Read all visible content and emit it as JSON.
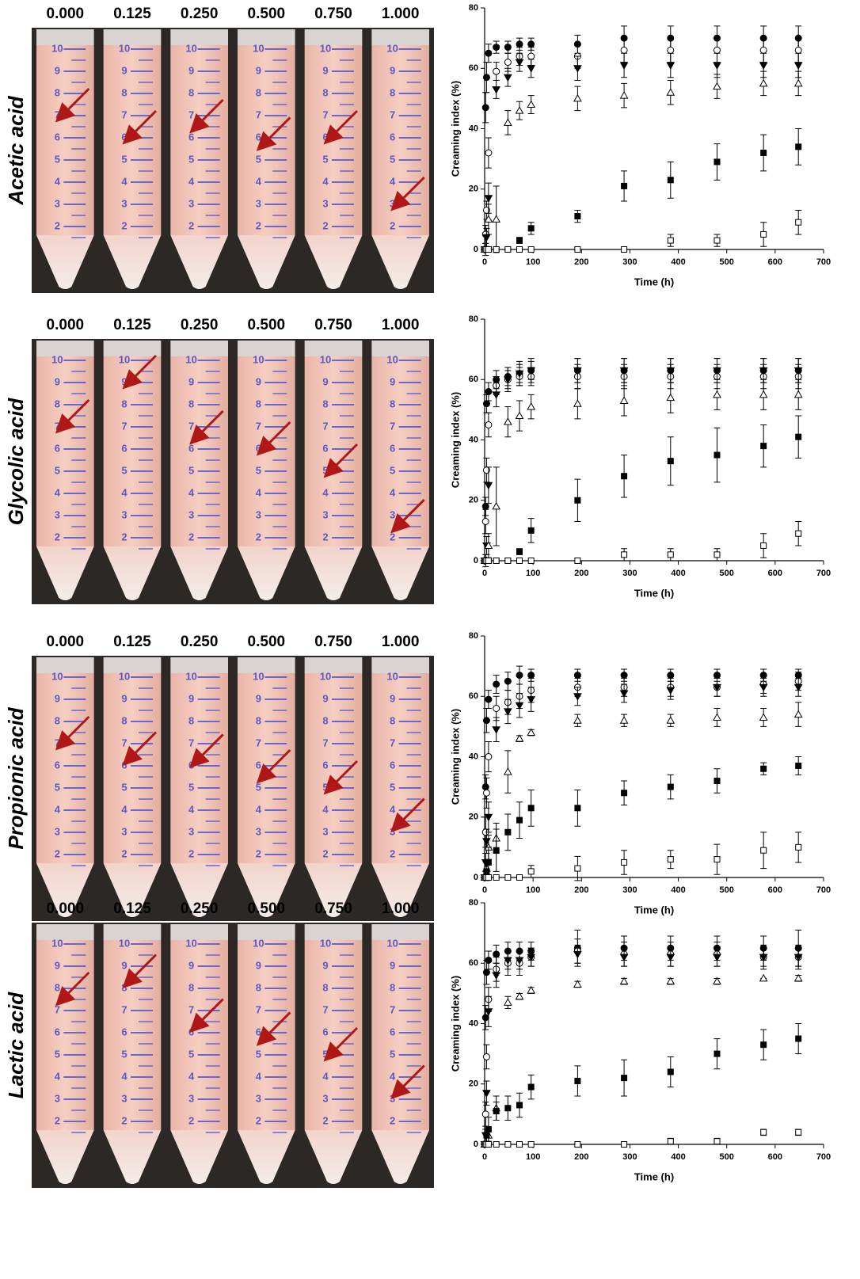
{
  "rows": [
    {
      "label": "Acetic acid",
      "concentrations": [
        "0.000",
        "0.125",
        "0.250",
        "0.500",
        "0.750",
        "1.000"
      ]
    },
    {
      "label": "Glycolic acid",
      "concentrations": [
        "0.000",
        "0.125",
        "0.250",
        "0.500",
        "0.750",
        "1.000"
      ]
    },
    {
      "label": "Propionic acid",
      "concentrations": [
        "0.000",
        "0.125",
        "0.250",
        "0.500",
        "0.750",
        "1.000"
      ]
    },
    {
      "label": "Lactic acid",
      "concentrations": [
        "0.000",
        "0.125",
        "0.250",
        "0.500",
        "0.750",
        "1.000"
      ]
    }
  ],
  "tube_scale": [
    10,
    9,
    8,
    7,
    6,
    5,
    4,
    3,
    2
  ],
  "chart_data": [
    {
      "type": "scatter",
      "x_label": "Time (h)",
      "y_label": "Creaming index (%)",
      "x": [
        0,
        2,
        4,
        8,
        24,
        48,
        72,
        96,
        192,
        288,
        384,
        480,
        576,
        648
      ],
      "xlim": [
        0,
        700
      ],
      "xticks": [
        0,
        100,
        200,
        300,
        400,
        500,
        600,
        700
      ],
      "ylim": [
        0,
        80
      ],
      "yticks": [
        0,
        20,
        40,
        60,
        80
      ],
      "series": [
        {
          "marker": "circle",
          "color": "#000000",
          "values": [
            0,
            47,
            57,
            65,
            67,
            67,
            68,
            68,
            68,
            70,
            70,
            70,
            70,
            70
          ],
          "errors": [
            0,
            5,
            5,
            3,
            2,
            2,
            2,
            2,
            3,
            4,
            4,
            4,
            4,
            4
          ]
        },
        {
          "marker": "circle-open",
          "color": "#000000",
          "values": [
            0,
            5,
            13,
            32,
            59,
            62,
            64,
            64,
            64,
            66,
            66,
            66,
            66,
            66
          ],
          "errors": [
            0,
            3,
            3,
            5,
            3,
            3,
            3,
            3,
            4,
            4,
            4,
            4,
            4,
            4
          ]
        },
        {
          "marker": "triangle-down",
          "color": "#000000",
          "values": [
            0,
            0,
            4,
            17,
            53,
            57,
            62,
            60,
            60,
            61,
            61,
            61,
            61,
            61
          ],
          "errors": [
            0,
            2,
            3,
            5,
            3,
            3,
            3,
            3,
            4,
            4,
            4,
            4,
            4,
            4
          ]
        },
        {
          "marker": "triangle-up-open",
          "color": "#000000",
          "values": [
            0,
            0,
            0,
            10,
            10,
            42,
            46,
            48,
            50,
            51,
            52,
            54,
            55,
            55
          ],
          "errors": [
            0,
            0,
            0,
            5,
            11,
            4,
            3,
            3,
            4,
            4,
            4,
            4,
            4,
            4
          ]
        },
        {
          "marker": "square",
          "color": "#000000",
          "values": [
            0,
            0,
            0,
            0,
            0,
            0,
            3,
            7,
            11,
            21,
            23,
            29,
            32,
            34
          ],
          "errors": [
            0,
            0,
            0,
            0,
            0,
            0,
            1,
            2,
            2,
            5,
            6,
            6,
            6,
            6
          ]
        },
        {
          "marker": "square-open",
          "color": "#000000",
          "values": [
            0,
            0,
            0,
            0,
            0,
            0,
            0,
            0,
            0,
            0,
            3,
            3,
            5,
            9
          ],
          "errors": [
            0,
            0,
            0,
            0,
            0,
            0,
            0,
            0,
            0,
            0,
            2,
            2,
            4,
            4
          ]
        }
      ]
    },
    {
      "type": "scatter",
      "x_label": "Time (h)",
      "y_label": "Creaming index (%)",
      "x": [
        0,
        2,
        4,
        8,
        24,
        48,
        72,
        96,
        192,
        288,
        384,
        480,
        576,
        648
      ],
      "xlim": [
        0,
        700
      ],
      "xticks": [
        0,
        100,
        200,
        300,
        400,
        500,
        600,
        700
      ],
      "ylim": [
        0,
        80
      ],
      "yticks": [
        0,
        20,
        40,
        60,
        80
      ],
      "series": [
        {
          "marker": "circle",
          "color": "#000000",
          "values": [
            0,
            18,
            52,
            56,
            60,
            61,
            62,
            63,
            63,
            63,
            63,
            63,
            63,
            63
          ],
          "errors": [
            0,
            3,
            3,
            3,
            3,
            3,
            3,
            3,
            4,
            4,
            4,
            4,
            4,
            4
          ]
        },
        {
          "marker": "circle-open",
          "color": "#000000",
          "values": [
            0,
            13,
            30,
            45,
            58,
            60,
            61,
            61,
            61,
            61,
            61,
            61,
            61,
            61
          ],
          "errors": [
            0,
            4,
            4,
            4,
            3,
            3,
            3,
            3,
            4,
            4,
            4,
            4,
            4,
            4
          ]
        },
        {
          "marker": "triangle-down",
          "color": "#000000",
          "values": [
            0,
            0,
            5,
            25,
            55,
            60,
            62,
            63,
            63,
            63,
            63,
            63,
            63,
            63
          ],
          "errors": [
            0,
            2,
            3,
            6,
            4,
            4,
            4,
            4,
            4,
            4,
            4,
            4,
            4,
            4
          ]
        },
        {
          "marker": "triangle-up-open",
          "color": "#000000",
          "values": [
            0,
            0,
            0,
            5,
            18,
            46,
            48,
            51,
            52,
            53,
            54,
            55,
            55,
            55
          ],
          "errors": [
            0,
            0,
            0,
            4,
            13,
            5,
            5,
            4,
            5,
            5,
            5,
            5,
            5,
            5
          ]
        },
        {
          "marker": "square",
          "color": "#000000",
          "values": [
            0,
            0,
            0,
            0,
            0,
            0,
            3,
            10,
            20,
            28,
            33,
            35,
            38,
            41
          ],
          "errors": [
            0,
            0,
            0,
            0,
            0,
            0,
            1,
            4,
            7,
            7,
            8,
            9,
            7,
            7
          ]
        },
        {
          "marker": "square-open",
          "color": "#000000",
          "values": [
            0,
            0,
            0,
            0,
            0,
            0,
            0,
            0,
            0,
            2,
            2,
            2,
            5,
            9
          ],
          "errors": [
            0,
            0,
            0,
            0,
            0,
            0,
            0,
            0,
            0,
            2,
            2,
            2,
            4,
            4
          ]
        }
      ]
    },
    {
      "type": "scatter",
      "x_label": "Time (h)",
      "y_label": "Creaming index (%)",
      "x": [
        0,
        2,
        4,
        8,
        24,
        48,
        72,
        96,
        192,
        288,
        384,
        480,
        576,
        648
      ],
      "xlim": [
        0,
        700
      ],
      "xticks": [
        0,
        100,
        200,
        300,
        400,
        500,
        600,
        700
      ],
      "ylim": [
        0,
        80
      ],
      "yticks": [
        0,
        20,
        40,
        60,
        80
      ],
      "series": [
        {
          "marker": "circle",
          "color": "#000000",
          "values": [
            0,
            30,
            52,
            59,
            64,
            65,
            67,
            67,
            67,
            67,
            67,
            67,
            67,
            67
          ],
          "errors": [
            0,
            4,
            4,
            3,
            3,
            3,
            3,
            2,
            2,
            2,
            2,
            2,
            2,
            2
          ]
        },
        {
          "marker": "circle-open",
          "color": "#000000",
          "values": [
            0,
            15,
            28,
            40,
            56,
            58,
            60,
            62,
            63,
            63,
            63,
            63,
            64,
            65
          ],
          "errors": [
            0,
            5,
            5,
            5,
            4,
            4,
            4,
            4,
            3,
            3,
            3,
            3,
            3,
            3
          ]
        },
        {
          "marker": "triangle-down",
          "color": "#000000",
          "values": [
            0,
            5,
            12,
            20,
            49,
            55,
            57,
            59,
            60,
            61,
            62,
            63,
            63,
            63
          ],
          "errors": [
            0,
            3,
            4,
            5,
            4,
            4,
            4,
            4,
            3,
            3,
            3,
            3,
            3,
            3
          ]
        },
        {
          "marker": "triangle-up-open",
          "color": "#000000",
          "values": [
            0,
            0,
            3,
            10,
            13,
            35,
            46,
            48,
            52,
            52,
            52,
            53,
            53,
            54
          ],
          "errors": [
            0,
            0,
            2,
            4,
            5,
            7,
            1,
            1,
            2,
            2,
            2,
            3,
            3,
            4
          ]
        },
        {
          "marker": "square",
          "color": "#000000",
          "values": [
            0,
            0,
            2,
            5,
            9,
            15,
            19,
            23,
            23,
            28,
            30,
            32,
            36,
            37
          ],
          "errors": [
            0,
            0,
            3,
            5,
            7,
            6,
            6,
            6,
            6,
            4,
            4,
            4,
            2,
            3
          ]
        },
        {
          "marker": "square-open",
          "color": "#000000",
          "values": [
            0,
            0,
            0,
            0,
            0,
            0,
            0,
            2,
            3,
            5,
            6,
            6,
            9,
            10
          ],
          "errors": [
            0,
            0,
            0,
            0,
            0,
            0,
            0,
            2,
            4,
            4,
            3,
            5,
            6,
            5
          ]
        }
      ]
    },
    {
      "type": "scatter",
      "x_label": "Time (h)",
      "y_label": "Creaming index (%)",
      "x": [
        0,
        2,
        4,
        8,
        24,
        48,
        72,
        96,
        192,
        288,
        384,
        480,
        576,
        648
      ],
      "xlim": [
        0,
        700
      ],
      "xticks": [
        0,
        100,
        200,
        300,
        400,
        500,
        600,
        700
      ],
      "ylim": [
        0,
        80
      ],
      "yticks": [
        0,
        20,
        40,
        60,
        80
      ],
      "series": [
        {
          "marker": "circle",
          "color": "#000000",
          "values": [
            0,
            42,
            57,
            61,
            63,
            64,
            64,
            64,
            65,
            65,
            65,
            65,
            65,
            65
          ],
          "errors": [
            0,
            4,
            4,
            3,
            3,
            3,
            3,
            3,
            6,
            4,
            4,
            4,
            4,
            6
          ]
        },
        {
          "marker": "circle-open",
          "color": "#000000",
          "values": [
            0,
            10,
            29,
            48,
            58,
            60,
            60,
            62,
            64,
            63,
            63,
            63,
            62,
            62
          ],
          "errors": [
            0,
            4,
            4,
            4,
            4,
            4,
            4,
            3,
            4,
            4,
            4,
            4,
            4,
            4
          ]
        },
        {
          "marker": "triangle-down",
          "color": "#000000",
          "values": [
            0,
            3,
            17,
            44,
            56,
            61,
            61,
            62,
            63,
            62,
            62,
            62,
            62,
            62
          ],
          "errors": [
            0,
            2,
            4,
            5,
            4,
            3,
            3,
            3,
            3,
            3,
            3,
            3,
            3,
            3
          ]
        },
        {
          "marker": "triangle-up-open",
          "color": "#000000",
          "values": [
            0,
            0,
            0,
            3,
            12,
            47,
            49,
            51,
            53,
            54,
            54,
            54,
            55,
            55
          ],
          "errors": [
            0,
            0,
            0,
            2,
            4,
            2,
            1,
            1,
            1,
            1,
            1,
            1,
            0,
            1
          ]
        },
        {
          "marker": "square",
          "color": "#000000",
          "values": [
            0,
            0,
            3,
            5,
            11,
            12,
            13,
            19,
            21,
            22,
            24,
            30,
            33,
            35
          ],
          "errors": [
            0,
            0,
            2,
            4,
            3,
            4,
            4,
            4,
            5,
            6,
            5,
            5,
            5,
            5
          ]
        },
        {
          "marker": "square-open",
          "color": "#000000",
          "values": [
            0,
            0,
            0,
            0,
            0,
            0,
            0,
            0,
            0,
            0,
            1,
            1,
            4,
            4
          ],
          "errors": [
            0,
            0,
            0,
            0,
            0,
            0,
            0,
            0,
            0,
            0,
            1,
            1,
            1,
            1
          ]
        }
      ]
    }
  ]
}
